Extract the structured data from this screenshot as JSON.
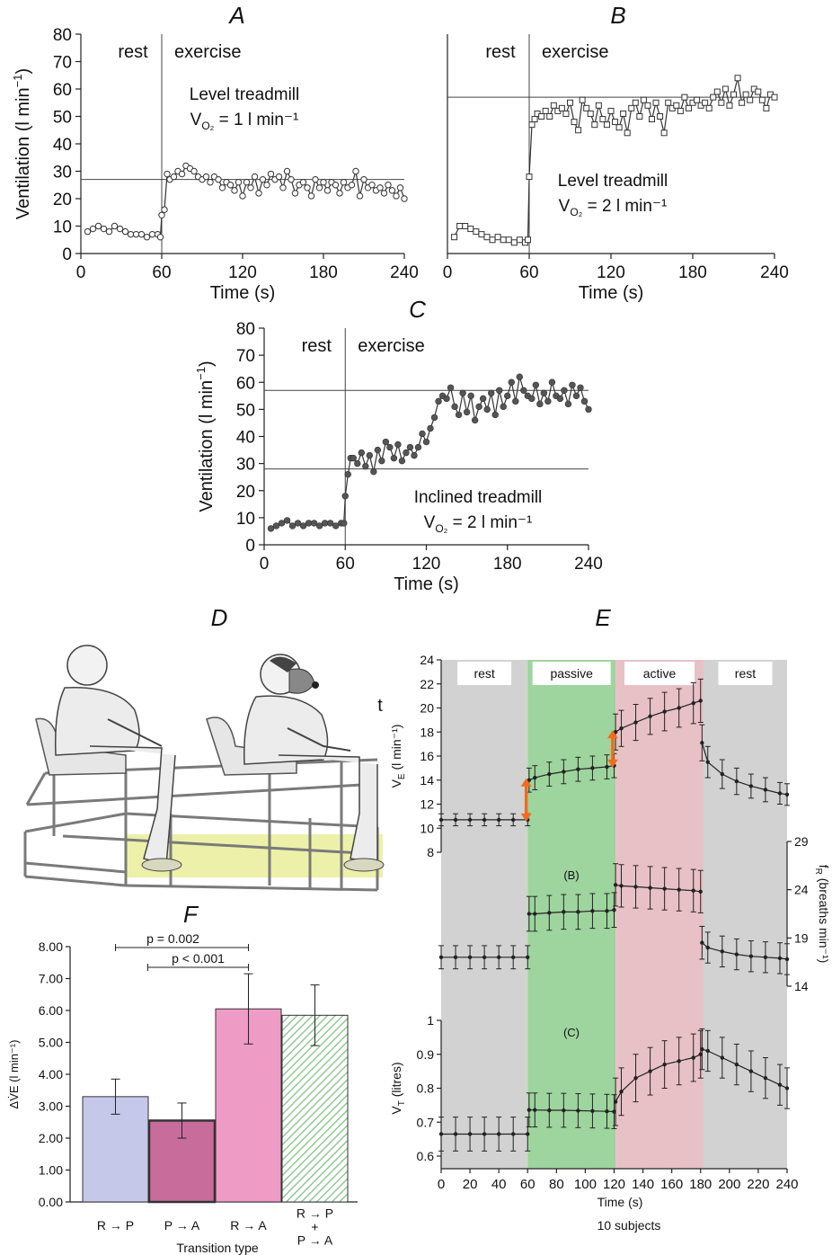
{
  "panels": {
    "A": {
      "letter": "A",
      "chart_data": {
        "type": "line",
        "xlabel": "Time (s)",
        "ylabel": "Ventilation (l min⁻¹)",
        "xlim": [
          0,
          240
        ],
        "ylim": [
          0,
          80
        ],
        "xticks": [
          0,
          60,
          120,
          180,
          240
        ],
        "yticks": [
          0,
          10,
          20,
          30,
          40,
          50,
          60,
          70,
          80
        ],
        "phase_labels": [
          "rest",
          "exercise"
        ],
        "phase_split": 60,
        "annotation": [
          "Level treadmill",
          "V",
          "O₂",
          " = 1 l min⁻¹"
        ],
        "reference_lines": [
          27
        ],
        "marker": "open-circle",
        "x": [
          5,
          9,
          13,
          17,
          21,
          25,
          29,
          33,
          37,
          41,
          45,
          49,
          53,
          57,
          59,
          60,
          62,
          64,
          66,
          69,
          72,
          75,
          78,
          81,
          84,
          87,
          90,
          93,
          96,
          99,
          102,
          105,
          108,
          111,
          114,
          117,
          120,
          123,
          126,
          129,
          132,
          135,
          138,
          141,
          144,
          147,
          150,
          153,
          156,
          159,
          162,
          165,
          168,
          171,
          174,
          177,
          180,
          183,
          186,
          189,
          192,
          195,
          198,
          201,
          204,
          207,
          210,
          213,
          216,
          219,
          222,
          225,
          228,
          231,
          234,
          237,
          240
        ],
        "y": [
          8,
          9,
          10,
          9,
          8,
          10,
          9,
          8,
          7,
          7,
          7,
          6,
          7,
          7,
          6,
          14,
          16,
          29,
          27,
          28,
          30,
          29,
          32,
          31,
          30,
          28,
          27,
          28,
          26,
          28,
          27,
          24,
          26,
          25,
          23,
          26,
          21,
          26,
          24,
          28,
          22,
          27,
          25,
          29,
          27,
          28,
          24,
          30,
          27,
          22,
          25,
          26,
          24,
          21,
          27,
          24,
          26,
          23,
          26,
          25,
          22,
          26,
          24,
          25,
          30,
          21,
          27,
          24,
          25,
          23,
          24,
          22,
          25,
          23,
          21,
          24,
          20
        ]
      }
    },
    "B": {
      "letter": "B",
      "chart_data": {
        "type": "line",
        "xlabel": "Time (s)",
        "ylabel": "",
        "xlim": [
          0,
          240
        ],
        "ylim": [
          0,
          80
        ],
        "xticks": [
          0,
          60,
          120,
          180,
          240
        ],
        "yticks": [],
        "phase_labels": [
          "rest",
          "exercise"
        ],
        "phase_split": 60,
        "annotation": [
          "Level treadmill",
          "V",
          "O₂",
          " = 2 l min⁻¹"
        ],
        "reference_lines": [
          57
        ],
        "marker": "open-square",
        "x": [
          5,
          9,
          13,
          17,
          21,
          25,
          29,
          33,
          37,
          41,
          45,
          49,
          53,
          57,
          59,
          60,
          62,
          64,
          66,
          69,
          72,
          75,
          78,
          81,
          84,
          87,
          90,
          93,
          96,
          99,
          102,
          105,
          108,
          111,
          114,
          117,
          120,
          123,
          126,
          129,
          132,
          135,
          138,
          141,
          144,
          147,
          150,
          153,
          156,
          159,
          162,
          165,
          168,
          171,
          174,
          177,
          180,
          183,
          186,
          189,
          192,
          195,
          198,
          201,
          204,
          207,
          210,
          213,
          216,
          219,
          222,
          225,
          228,
          231,
          234,
          237,
          240
        ],
        "y": [
          6,
          10,
          10,
          9,
          8,
          7,
          6,
          5,
          6,
          5,
          5,
          4,
          5,
          4,
          5,
          28,
          47,
          49,
          51,
          50,
          52,
          50,
          54,
          52,
          53,
          51,
          55,
          48,
          45,
          56,
          53,
          51,
          47,
          54,
          49,
          47,
          52,
          48,
          46,
          51,
          44,
          53,
          55,
          50,
          56,
          54,
          49,
          55,
          50,
          44,
          55,
          53,
          54,
          52,
          57,
          53,
          55,
          56,
          54,
          55,
          53,
          57,
          59,
          55,
          60,
          54,
          58,
          64,
          55,
          58,
          56,
          60,
          59,
          56,
          53,
          58,
          57
        ]
      }
    },
    "C": {
      "letter": "C",
      "chart_data": {
        "type": "line",
        "xlabel": "Time (s)",
        "ylabel": "Ventilation (l min⁻¹)",
        "xlim": [
          0,
          240
        ],
        "ylim": [
          0,
          80
        ],
        "xticks": [
          0,
          60,
          120,
          180,
          240
        ],
        "yticks": [
          0,
          10,
          20,
          30,
          40,
          50,
          60,
          70,
          80
        ],
        "phase_labels": [
          "rest",
          "exercise"
        ],
        "phase_split": 60,
        "annotation": [
          "Inclined treadmill",
          "V",
          "O₂",
          " = 2 l min⁻¹"
        ],
        "reference_lines": [
          28,
          57
        ],
        "marker": "filled-circle",
        "x": [
          5,
          9,
          13,
          17,
          21,
          25,
          29,
          33,
          37,
          41,
          45,
          49,
          53,
          57,
          59,
          60,
          62,
          64,
          66,
          69,
          72,
          75,
          78,
          81,
          84,
          87,
          90,
          93,
          96,
          99,
          102,
          105,
          108,
          111,
          114,
          117,
          120,
          123,
          126,
          129,
          132,
          135,
          138,
          141,
          144,
          147,
          150,
          153,
          156,
          159,
          162,
          165,
          168,
          171,
          174,
          177,
          180,
          183,
          186,
          189,
          192,
          195,
          198,
          201,
          204,
          207,
          210,
          213,
          216,
          219,
          222,
          225,
          228,
          231,
          234,
          237,
          240
        ],
        "y": [
          6,
          7,
          8,
          9,
          7,
          8,
          7,
          8,
          8,
          7,
          8,
          8,
          7,
          8,
          8,
          18,
          26,
          32,
          32,
          30,
          34,
          29,
          33,
          27,
          35,
          31,
          38,
          36,
          32,
          37,
          31,
          34,
          36,
          33,
          36,
          41,
          38,
          43,
          47,
          53,
          55,
          54,
          58,
          51,
          48,
          56,
          49,
          55,
          46,
          51,
          54,
          50,
          56,
          48,
          57,
          51,
          55,
          60,
          53,
          62,
          57,
          55,
          54,
          59,
          52,
          56,
          53,
          60,
          55,
          54,
          57,
          52,
          59,
          55,
          58,
          53,
          50
        ]
      }
    },
    "D": {
      "letter": "D",
      "illustration": "two seated subjects on a pedal rig; lower rig highlighted in yellow",
      "glyph": "t"
    },
    "E": {
      "letter": "E",
      "phases": [
        {
          "label": "rest",
          "color": "#d2d2d2"
        },
        {
          "label": "passive",
          "color": "#9ed49e"
        },
        {
          "label": "active",
          "color": "#e7c1c6"
        },
        {
          "label": "rest",
          "color": "#d2d2d2"
        }
      ],
      "xlabel": "Time (s)",
      "xticks": [
        0,
        20,
        40,
        60,
        80,
        100,
        120,
        140,
        160,
        180,
        200,
        220,
        240
      ],
      "footer": "10 subjects",
      "arrow_color": "#f36b1c",
      "chart_data": [
        {
          "type": "line",
          "name": "VE",
          "ylabel_main": "V",
          "ylabel_sub": "E",
          "ylabel_unit": " (l min⁻¹)",
          "ylim": [
            8,
            24
          ],
          "yticks": [
            8,
            10,
            12,
            14,
            16,
            18,
            20,
            22,
            24
          ],
          "x": [
            0,
            10,
            20,
            30,
            40,
            50,
            60,
            61,
            65,
            75,
            85,
            95,
            105,
            115,
            120,
            121,
            125,
            135,
            145,
            155,
            165,
            175,
            180,
            181,
            185,
            195,
            205,
            215,
            225,
            235,
            240
          ],
          "y": [
            10.7,
            10.7,
            10.7,
            10.7,
            10.7,
            10.7,
            10.7,
            14.0,
            14.2,
            14.5,
            14.7,
            14.9,
            15.0,
            15.1,
            15.2,
            18.0,
            18.3,
            18.8,
            19.3,
            19.7,
            20.0,
            20.4,
            20.6,
            17.1,
            15.5,
            14.5,
            13.9,
            13.5,
            13.2,
            12.9,
            12.8
          ],
          "err": [
            0.5,
            0.5,
            0.5,
            0.5,
            0.5,
            0.5,
            0.5,
            1.0,
            1.0,
            1.0,
            1.0,
            1.0,
            1.0,
            1.0,
            1.0,
            1.5,
            1.5,
            1.5,
            1.5,
            1.6,
            1.6,
            1.7,
            1.8,
            1.5,
            1.3,
            1.2,
            1.1,
            1.0,
            1.0,
            0.9,
            0.9
          ]
        },
        {
          "type": "line",
          "name": "fR",
          "label": "(B)",
          "ylabel_main": "f",
          "ylabel_sub": "R",
          "ylabel_unit": " (breaths min⁻¹)",
          "ylim": [
            14,
            29
          ],
          "yticks": [
            14,
            19,
            24,
            29
          ],
          "x": [
            0,
            10,
            20,
            30,
            40,
            50,
            60,
            61,
            65,
            75,
            85,
            95,
            105,
            115,
            120,
            121,
            125,
            135,
            145,
            155,
            165,
            175,
            180,
            181,
            185,
            195,
            205,
            215,
            225,
            235,
            240
          ],
          "y": [
            17.0,
            17.0,
            17.0,
            17.0,
            17.0,
            17.0,
            17.0,
            21.5,
            21.5,
            21.6,
            21.7,
            21.7,
            21.8,
            21.8,
            21.9,
            24.5,
            24.4,
            24.3,
            24.2,
            24.1,
            24.0,
            23.9,
            23.8,
            18.5,
            18.0,
            17.6,
            17.3,
            17.1,
            17.0,
            16.9,
            16.8
          ],
          "err": [
            1.2,
            1.2,
            1.2,
            1.2,
            1.2,
            1.2,
            1.2,
            1.8,
            1.8,
            1.8,
            1.8,
            1.8,
            1.8,
            1.8,
            1.8,
            2.2,
            2.2,
            2.2,
            2.2,
            2.2,
            2.2,
            2.2,
            2.2,
            1.7,
            1.6,
            1.6,
            1.6,
            1.6,
            1.6,
            1.6,
            1.6
          ]
        },
        {
          "type": "line",
          "name": "VT",
          "label": "(C)",
          "ylabel_main": "V",
          "ylabel_sub": "T",
          "ylabel_unit": " (litres)",
          "ylim": [
            0.6,
            1.0
          ],
          "yticks": [
            0.6,
            0.7,
            0.8,
            0.9,
            1.0
          ],
          "x": [
            0,
            10,
            20,
            30,
            40,
            50,
            60,
            61,
            65,
            75,
            85,
            95,
            105,
            115,
            120,
            121,
            125,
            135,
            145,
            155,
            165,
            175,
            180,
            181,
            185,
            195,
            205,
            215,
            225,
            235,
            240
          ],
          "y": [
            0.665,
            0.665,
            0.665,
            0.665,
            0.665,
            0.665,
            0.665,
            0.736,
            0.736,
            0.735,
            0.735,
            0.734,
            0.733,
            0.732,
            0.731,
            0.76,
            0.79,
            0.83,
            0.85,
            0.87,
            0.88,
            0.89,
            0.9,
            0.915,
            0.91,
            0.89,
            0.87,
            0.85,
            0.83,
            0.81,
            0.8
          ],
          "err": [
            0.05,
            0.05,
            0.05,
            0.05,
            0.05,
            0.05,
            0.05,
            0.05,
            0.05,
            0.05,
            0.05,
            0.05,
            0.05,
            0.05,
            0.05,
            0.07,
            0.07,
            0.07,
            0.07,
            0.07,
            0.07,
            0.07,
            0.07,
            0.06,
            0.06,
            0.06,
            0.06,
            0.06,
            0.06,
            0.06,
            0.06
          ]
        }
      ]
    },
    "F": {
      "letter": "F",
      "chart_data": {
        "type": "bar",
        "categories": [
          "R → P",
          "P → A",
          "R → A",
          "R → P\n+\nP → A"
        ],
        "values": [
          3.3,
          2.55,
          6.05,
          5.85
        ],
        "err": [
          0.55,
          0.55,
          1.1,
          0.95
        ],
        "colors": [
          "#c5c8e8",
          "#c86c9c",
          "#ee9bc6",
          "#d7ecd5"
        ],
        "xlabel": "Transition type",
        "ylabel": "ΔV̇E (l min⁻¹)",
        "ylim": [
          0,
          8
        ],
        "yticks": [
          "0.00",
          "1.00",
          "2.00",
          "3.00",
          "4.00",
          "5.00",
          "6.00",
          "7.00",
          "8.00"
        ],
        "comparisons": [
          {
            "label": "p = 0.002",
            "from": 0,
            "to": 2
          },
          {
            "label": "p < 0.001",
            "from": 1,
            "to": 2
          }
        ]
      }
    }
  }
}
